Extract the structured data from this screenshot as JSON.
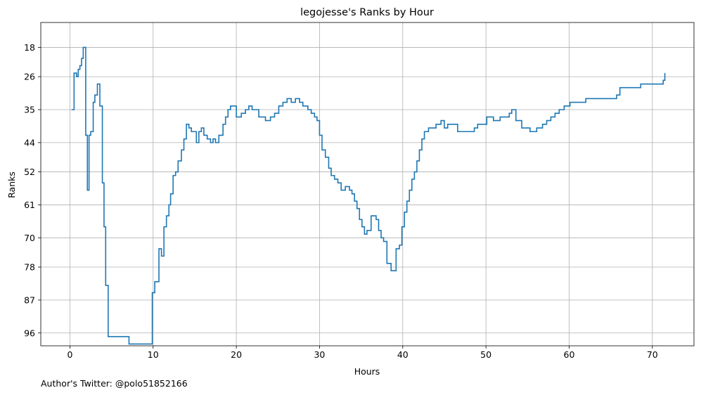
{
  "footer": {
    "credit": "Author's Twitter: @polo51852166"
  },
  "colors": {
    "line": "#1f77b4",
    "grid": "#b0b0b0",
    "axis": "#000000"
  },
  "chart_data": {
    "type": "line",
    "step": true,
    "title": "legojesse's Ranks by Hour",
    "xlabel": "Hours",
    "ylabel": "Ranks",
    "xlim": [
      -3.5,
      75
    ],
    "ylim": [
      99.5,
      11.2
    ],
    "y_inverted": true,
    "grid": true,
    "legend": "none",
    "xticks": [
      0,
      10,
      20,
      30,
      40,
      50,
      60,
      70
    ],
    "yticks": [
      18,
      26,
      35,
      44,
      52,
      61,
      70,
      78,
      87,
      96
    ],
    "series": [
      {
        "x": [
          0.2,
          0.5,
          0.8,
          1.0,
          1.2,
          1.4,
          1.6,
          1.9,
          2.1,
          2.3,
          2.5,
          2.8,
          3.0,
          3.3,
          3.6,
          3.9,
          4.1,
          4.3,
          4.6,
          7.1,
          9.6,
          9.9,
          10.2,
          10.7,
          11.0,
          11.3,
          11.6,
          11.9,
          12.1,
          12.4,
          12.7,
          13.0,
          13.4,
          13.7,
          14.0,
          14.3,
          14.6,
          15.2,
          15.5,
          15.8,
          16.1,
          16.5,
          16.9,
          17.2,
          17.5,
          17.9,
          18.4,
          18.7,
          19.0,
          19.3,
          20.0,
          20.6,
          21.1,
          21.5,
          21.9,
          22.7,
          23.5,
          24.1,
          24.6,
          25.1,
          25.6,
          26.1,
          26.6,
          27.1,
          27.6,
          28.0,
          28.6,
          29.0,
          29.4,
          29.7,
          30.0,
          30.3,
          30.7,
          31.1,
          31.4,
          31.8,
          32.2,
          32.6,
          33.1,
          33.6,
          33.9,
          34.2,
          34.5,
          34.8,
          35.1,
          35.4,
          35.7,
          36.2,
          36.8,
          37.1,
          37.4,
          37.7,
          38.1,
          38.6,
          39.2,
          39.6,
          39.9,
          40.2,
          40.5,
          40.8,
          41.1,
          41.4,
          41.7,
          42.0,
          42.3,
          42.6,
          43.1,
          44.0,
          44.6,
          45.0,
          45.4,
          46.6,
          48.6,
          49.0,
          50.1,
          50.9,
          51.7,
          52.8,
          53.1,
          53.6,
          54.3,
          55.3,
          56.1,
          56.8,
          57.3,
          57.8,
          58.3,
          58.8,
          59.4,
          60.1,
          62.0,
          64.1,
          65.7,
          66.1,
          68.6,
          71.3,
          71.5
        ],
        "y": [
          35,
          25,
          26,
          24,
          23,
          21,
          18,
          42,
          57,
          42,
          41,
          33,
          31,
          28,
          34,
          55,
          67,
          83,
          97,
          99,
          99,
          85,
          82,
          73,
          75,
          67,
          64,
          61,
          58,
          53,
          52,
          49,
          46,
          43,
          39,
          40,
          41,
          44,
          41,
          40,
          42,
          43,
          44,
          43,
          44,
          42,
          39,
          37,
          35,
          34,
          37,
          36,
          35,
          34,
          35,
          37,
          38,
          37,
          36,
          34,
          33,
          32,
          33,
          32,
          33,
          34,
          35,
          36,
          37,
          38,
          42,
          46,
          48,
          51,
          53,
          54,
          55,
          57,
          56,
          57,
          58,
          60,
          62,
          65,
          67,
          69,
          68,
          64,
          65,
          68,
          70,
          71,
          77,
          79,
          73,
          72,
          67,
          63,
          60,
          57,
          54,
          52,
          49,
          46,
          43,
          41,
          40,
          39,
          38,
          40,
          39,
          41,
          40,
          39,
          37,
          38,
          37,
          36,
          35,
          38,
          40,
          41,
          40,
          39,
          38,
          37,
          36,
          35,
          34,
          33,
          32,
          32,
          31,
          29,
          28,
          27,
          25
        ]
      }
    ]
  }
}
